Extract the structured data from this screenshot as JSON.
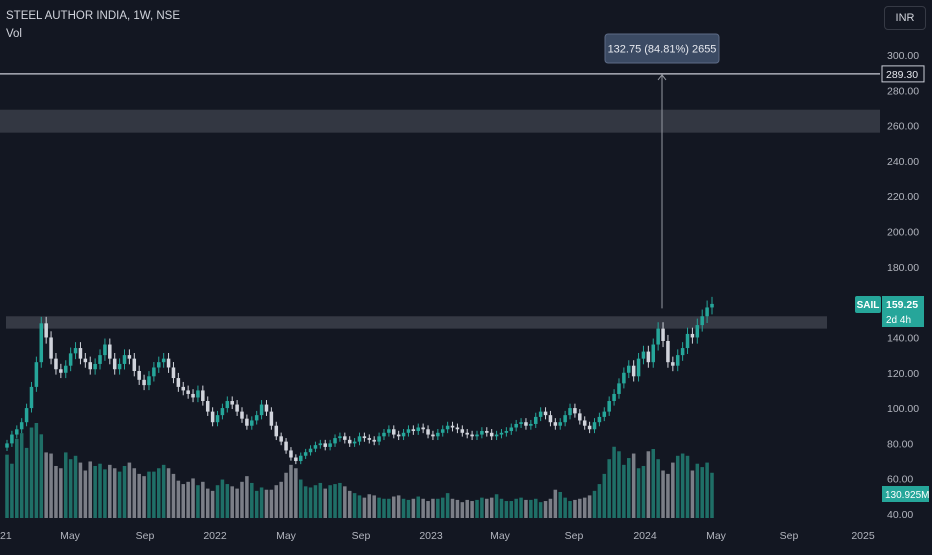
{
  "header": {
    "title": "STEEL AUTHOR INDIA, 1W, NSE",
    "volume_label": "Vol"
  },
  "currency": "INR",
  "measure_label": "132.75 (84.81%) 2655",
  "colors": {
    "background": "#131722",
    "up": "#26a69a",
    "down": "#d1d4dc",
    "volume_up": "#1f6f67",
    "volume_down": "#7b7e87",
    "zone": "#3a3d48",
    "badge": "#26a69a",
    "measure_box": "#3b4a63"
  },
  "chart_data": {
    "type": "candlestick",
    "title": "STEEL AUTHOR INDIA, 1W, NSE",
    "symbol": "SAIL",
    "timeframe": "1W",
    "exchange": "NSE",
    "ylim": [
      40,
      310
    ],
    "y_ticks": [
      "300.00",
      "280.00",
      "260.00",
      "240.00",
      "220.00",
      "200.00",
      "180.00",
      "160.00",
      "140.00",
      "120.00",
      "100.00",
      "80.00",
      "60.00",
      "40.00"
    ],
    "x_ticks": [
      "21",
      "May",
      "Sep",
      "2022",
      "May",
      "Sep",
      "2023",
      "May",
      "Sep",
      "2024",
      "May",
      "Sep",
      "2025"
    ],
    "last_price": {
      "symbol": "SAIL",
      "value": "159.25",
      "countdown": "2d 4h"
    },
    "resistance_line": {
      "value": "289.30"
    },
    "volume_last": "130.925M",
    "zones": [
      {
        "from": 256,
        "to": 269
      },
      {
        "from": 145,
        "to": 152
      }
    ],
    "measure": {
      "from": 156.5,
      "to": 289.3,
      "change": 132.75,
      "percent": 84.81,
      "bars": 2655
    },
    "closes": [
      80,
      85,
      88,
      92,
      100,
      112,
      126,
      148,
      140,
      128,
      122,
      120,
      124,
      131,
      134,
      128,
      126,
      122,
      125,
      130,
      136,
      128,
      122,
      125,
      130,
      128,
      121,
      116,
      113,
      118,
      123,
      126,
      128,
      123,
      117,
      112,
      110,
      108,
      106,
      110,
      104,
      98,
      92,
      96,
      100,
      104,
      102,
      98,
      94,
      90,
      93,
      96,
      102,
      98,
      90,
      84,
      81,
      76,
      72,
      70,
      73,
      75,
      77,
      79,
      80,
      78,
      80,
      83,
      84,
      82,
      80,
      81,
      84,
      83,
      82,
      81,
      84,
      86,
      88,
      85,
      84,
      86,
      88,
      87,
      89,
      88,
      85,
      84,
      86,
      88,
      90,
      89,
      88,
      86,
      85,
      84,
      85,
      87,
      86,
      84,
      85,
      86,
      87,
      89,
      91,
      92,
      90,
      91,
      95,
      98,
      96,
      92,
      90,
      92,
      96,
      100,
      97,
      93,
      90,
      88,
      92,
      95,
      98,
      104,
      108,
      114,
      120,
      124,
      118,
      128,
      132,
      126,
      136,
      145,
      138,
      126,
      124,
      130,
      134,
      142,
      140,
      147,
      152,
      157,
      159
    ],
    "volumes": [
      56,
      48,
      70,
      75,
      62,
      80,
      84,
      74,
      58,
      57,
      46,
      44,
      58,
      52,
      55,
      49,
      42,
      50,
      46,
      48,
      43,
      47,
      44,
      41,
      46,
      49,
      44,
      39,
      37,
      41,
      41,
      44,
      47,
      44,
      39,
      33,
      30,
      32,
      35,
      29,
      32,
      26,
      24,
      29,
      34,
      30,
      28,
      26,
      32,
      37,
      31,
      24,
      27,
      25,
      25,
      29,
      32,
      40,
      47,
      44,
      34,
      28,
      27,
      29,
      31,
      26,
      29,
      30,
      31,
      28,
      24,
      22,
      20,
      18,
      21,
      20,
      18,
      17,
      17,
      19,
      20,
      17,
      16,
      17,
      19,
      17,
      15,
      17,
      17,
      18,
      22,
      17,
      16,
      14,
      16,
      15,
      16,
      18,
      17,
      18,
      21,
      17,
      15,
      15,
      17,
      18,
      16,
      16,
      17,
      14,
      15,
      17,
      25,
      23,
      18,
      15,
      16,
      17,
      18,
      20,
      24,
      30,
      39,
      52,
      63,
      59,
      47,
      53,
      57,
      44,
      46,
      59,
      61,
      52,
      42,
      39,
      49,
      55,
      57,
      55,
      42,
      48,
      45,
      49,
      40
    ]
  }
}
